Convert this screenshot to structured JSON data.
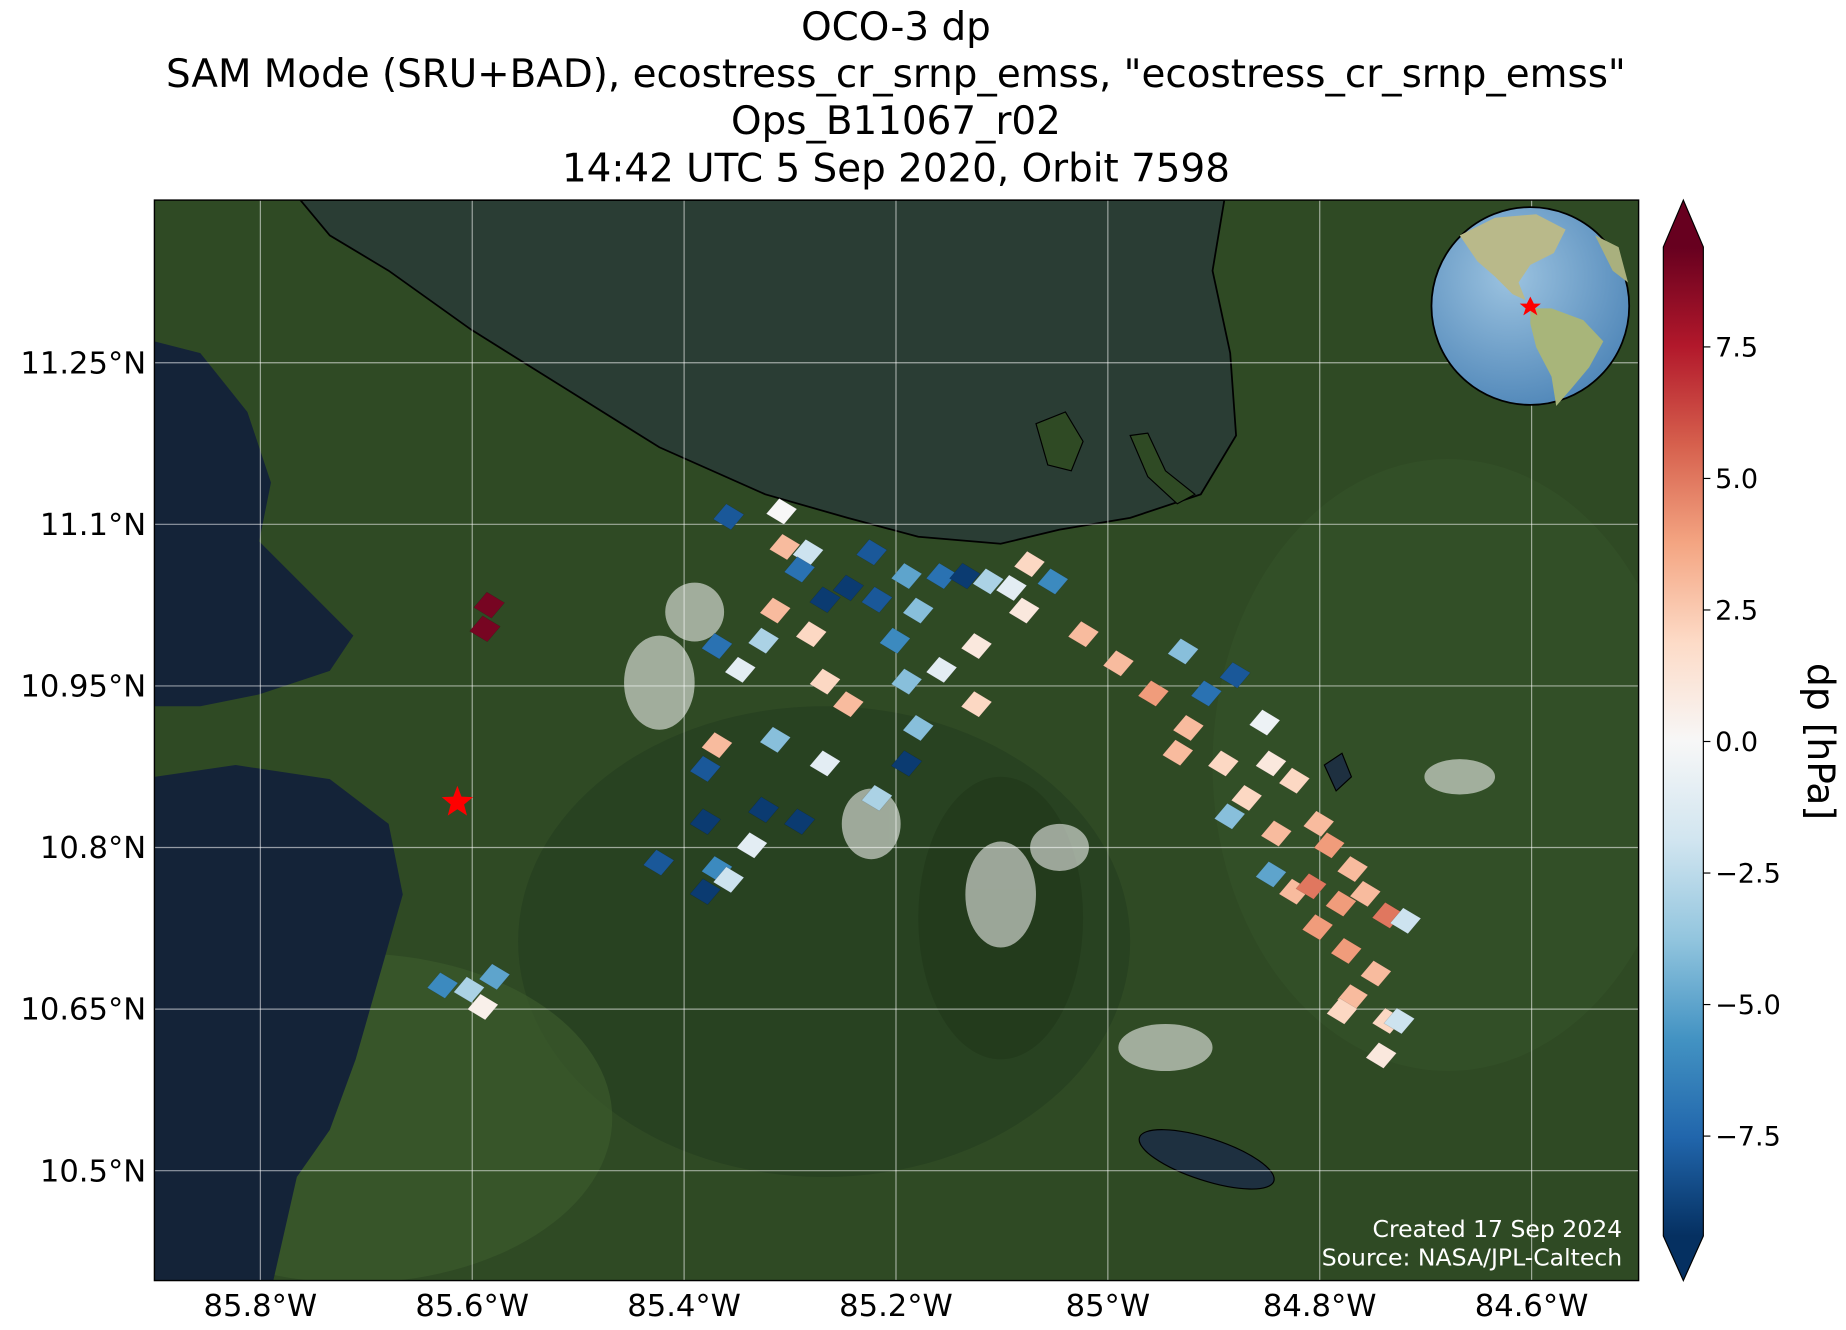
{
  "chart_data": {
    "type": "map",
    "title": [
      "OCO-3 dp",
      "SAM Mode (SRU+BAD), ecostress_cr_srnp_emss, \"ecostress_cr_srnp_emss\"",
      "Ops_B11067_r02",
      "14:42 UTC 5 Sep 2020, Orbit 7598"
    ],
    "xlim": [
      -85.9,
      -84.499
    ],
    "ylim": [
      10.398,
      11.401
    ],
    "xticks": [
      {
        "value": -85.8,
        "label": "85.8°W"
      },
      {
        "value": -85.6,
        "label": "85.6°W"
      },
      {
        "value": -85.4,
        "label": "85.4°W"
      },
      {
        "value": -85.2,
        "label": "85.2°W"
      },
      {
        "value": -85.0,
        "label": "85°W"
      },
      {
        "value": -84.8,
        "label": "84.8°W"
      },
      {
        "value": -84.6,
        "label": "84.6°W"
      }
    ],
    "yticks": [
      {
        "value": 11.25,
        "label": "11.25°N"
      },
      {
        "value": 11.1,
        "label": "11.1°N"
      },
      {
        "value": 10.95,
        "label": "10.95°N"
      },
      {
        "value": 10.8,
        "label": "10.8°N"
      },
      {
        "value": 10.65,
        "label": "10.65°N"
      },
      {
        "value": 10.5,
        "label": "10.5°N"
      }
    ],
    "grid": true,
    "x": [
      -85.584,
      -85.588,
      -85.628,
      -85.603,
      -85.579,
      -85.59,
      -85.358,
      -85.308,
      -85.305,
      -85.283,
      -85.291,
      -85.223,
      -85.245,
      -85.267,
      -85.314,
      -85.325,
      -85.369,
      -85.347,
      -85.28,
      -85.218,
      -85.19,
      -85.157,
      -85.135,
      -85.113,
      -85.091,
      -85.179,
      -85.201,
      -85.267,
      -85.245,
      -85.19,
      -85.157,
      -85.124,
      -85.079,
      -85.124,
      -85.179,
      -85.19,
      -85.218,
      -85.369,
      -85.38,
      -85.314,
      -85.267,
      -85.325,
      -85.291,
      -85.38,
      -85.336,
      -85.369,
      -85.358,
      -85.38,
      -85.424,
      -85.074,
      -85.052,
      -85.023,
      -84.99,
      -84.957,
      -84.929,
      -84.907,
      -84.88,
      -84.924,
      -84.891,
      -84.852,
      -84.846,
      -84.869,
      -84.824,
      -84.885,
      -84.841,
      -84.791,
      -84.769,
      -84.846,
      -84.824,
      -84.808,
      -84.78,
      -84.736,
      -84.719,
      -84.802,
      -84.775,
      -84.747,
      -84.769,
      -84.736,
      -84.725,
      -84.742,
      -84.934,
      -84.801,
      -84.757,
      -84.779
    ],
    "y": [
      11.025,
      11.003,
      10.672,
      10.668,
      10.68,
      10.652,
      11.107,
      11.112,
      11.079,
      11.074,
      11.058,
      11.074,
      11.041,
      11.03,
      11.02,
      10.992,
      10.987,
      10.965,
      10.998,
      11.03,
      11.052,
      11.052,
      11.052,
      11.047,
      11.041,
      11.02,
      10.992,
      10.954,
      10.933,
      10.954,
      10.965,
      10.987,
      11.02,
      10.933,
      10.911,
      10.878,
      10.846,
      10.895,
      10.873,
      10.9,
      10.878,
      10.835,
      10.824,
      10.824,
      10.802,
      10.78,
      10.77,
      10.759,
      10.786,
      11.063,
      11.047,
      10.998,
      10.971,
      10.943,
      10.982,
      10.943,
      10.96,
      10.911,
      10.878,
      10.916,
      10.878,
      10.846,
      10.862,
      10.829,
      10.813,
      10.802,
      10.78,
      10.775,
      10.759,
      10.764,
      10.748,
      10.737,
      10.732,
      10.726,
      10.704,
      10.683,
      10.661,
      10.639,
      10.639,
      10.607,
      10.888,
      10.822,
      10.757,
      10.648
    ],
    "values": [
      9,
      9,
      -6,
      -3,
      -5,
      0.5,
      -8,
      0,
      3,
      -2,
      -7,
      -8,
      -9,
      -9,
      3,
      -3,
      -7,
      -1,
      2,
      -8,
      -5,
      -7,
      -9,
      -3,
      -1,
      -4,
      -6,
      2,
      3,
      -4,
      -1,
      1,
      1,
      2,
      -4,
      -9,
      -3,
      3,
      -8,
      -4,
      -1,
      -9,
      -9,
      -9,
      -1,
      -6,
      -2,
      -9,
      -8,
      2,
      -6,
      3,
      3,
      4,
      -4,
      -7,
      -8,
      3,
      2,
      -0.5,
      1,
      2,
      2,
      -4,
      3,
      4,
      3,
      -5,
      3,
      5,
      4,
      5,
      -2,
      4,
      4,
      3,
      3,
      2,
      -2,
      1,
      3,
      3,
      3,
      2
    ],
    "site": {
      "x": -85.614,
      "y": 10.842,
      "color": "#ff0000"
    },
    "colorbar": {
      "label": "dp [hPa]",
      "lim": [
        -9.4,
        9.4
      ],
      "ticks": [
        {
          "value": 7.5,
          "label": "7.5"
        },
        {
          "value": 5.0,
          "label": "5.0"
        },
        2.5,
        {
          "value": 0.0,
          "label": "0.0"
        },
        {
          "value": -2.5,
          "label": "−2.5"
        },
        {
          "value": -5.0,
          "label": "−5.0"
        },
        {
          "value": -7.5,
          "label": "−7.5"
        }
      ],
      "colormap": [
        "#053061",
        "#2166ac",
        "#4393c3",
        "#92c5de",
        "#d1e5f0",
        "#f7f7f7",
        "#fddbc7",
        "#f4a582",
        "#d6604d",
        "#b2182b",
        "#67001f"
      ]
    },
    "annotations": [
      "Created 17 Sep 2024",
      "Source: NASA/JPL-Caltech"
    ]
  }
}
